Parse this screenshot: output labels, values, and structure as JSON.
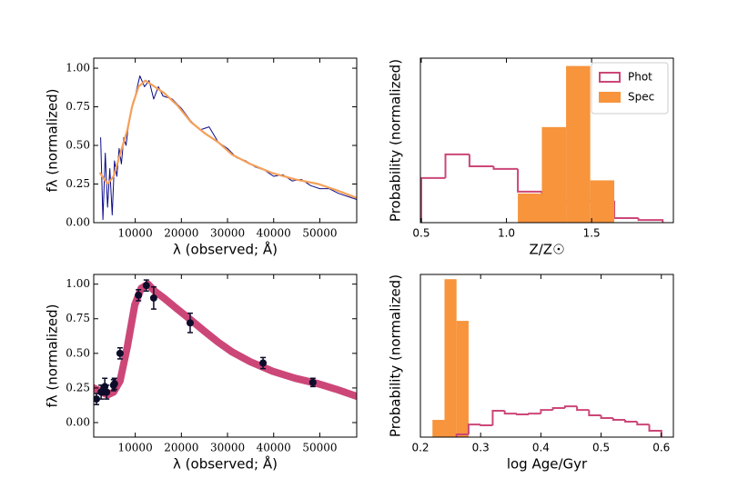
{
  "chart_data": [
    {
      "type": "line",
      "x_label": "λ (observed; Å)",
      "y_label": "fλ (normalized)",
      "xlim": [
        1000,
        58000
      ],
      "ylim": [
        0,
        1.065
      ],
      "xticks": [
        10000,
        20000,
        30000,
        40000,
        50000
      ],
      "yticks": [
        {
          "value": 0,
          "label": "0.00"
        },
        {
          "value": 0.25,
          "label": "0.25"
        },
        {
          "value": 0.5,
          "label": "0.50"
        },
        {
          "value": 0.75,
          "label": "0.75"
        },
        {
          "value": 1,
          "label": "1.00"
        }
      ],
      "series": [
        {
          "color": "#0b0b8a",
          "x": [
            2500,
            3000,
            3500,
            4000,
            4500,
            5000,
            5500,
            6000,
            6500,
            7000,
            7500,
            8000,
            8500,
            9000,
            9500,
            10000,
            11000,
            12000,
            13000,
            14000,
            15000,
            16000,
            18000,
            20000,
            22000,
            24000,
            26000,
            28000,
            30000,
            32000,
            34000,
            36000,
            38000,
            40000,
            42000,
            44000,
            46000,
            48000,
            50000,
            52000,
            54000,
            56000,
            58000
          ],
          "values": [
            0.55,
            0.02,
            0.45,
            0.1,
            0.35,
            0.05,
            0.4,
            0.3,
            0.48,
            0.38,
            0.55,
            0.5,
            0.62,
            0.7,
            0.78,
            0.82,
            0.95,
            0.88,
            0.92,
            0.8,
            0.88,
            0.82,
            0.8,
            0.74,
            0.66,
            0.6,
            0.62,
            0.52,
            0.48,
            0.42,
            0.4,
            0.36,
            0.34,
            0.3,
            0.31,
            0.27,
            0.28,
            0.24,
            0.22,
            0.22,
            0.19,
            0.17,
            0.15
          ]
        },
        {
          "color": "#f5a05a",
          "x": [
            2400,
            4000,
            5300,
            7300,
            8300,
            9300,
            10700,
            12200,
            14200,
            16200,
            19100,
            22100,
            25000,
            28000,
            31000,
            34900,
            39800,
            44700,
            49700,
            53600,
            58000
          ],
          "values": [
            0.32,
            0.25,
            0.3,
            0.5,
            0.6,
            0.75,
            0.88,
            0.92,
            0.88,
            0.84,
            0.76,
            0.65,
            0.58,
            0.52,
            0.44,
            0.38,
            0.32,
            0.28,
            0.25,
            0.21,
            0.16
          ]
        }
      ]
    },
    {
      "type": "histogram",
      "x_label": "Z/Z☉",
      "y_label": "Probability (normalized)",
      "xlim": [
        0.495,
        1.98
      ],
      "ylim": [
        0,
        1.05
      ],
      "xticks": [
        0.5,
        {
          "value": 1,
          "label": "1.0"
        },
        1.5
      ],
      "legend": "upper right",
      "series": [
        {
          "name": "Phot",
          "color": "#cc4778",
          "style": "step",
          "bins": [
            0.5,
            0.642,
            0.783,
            0.925,
            1.067,
            1.208,
            1.35,
            1.492,
            1.633,
            1.775,
            1.917
          ],
          "values": [
            0.285,
            0.436,
            0.36,
            0.343,
            0.198,
            0.145,
            0.134,
            0.14,
            0.029,
            0.017
          ]
        },
        {
          "name": "Spec",
          "color": "#f7943c",
          "style": "filled",
          "bins": [
            1.067,
            1.208,
            1.35,
            1.492,
            1.633
          ],
          "values": [
            0.186,
            0.61,
            1.0,
            0.27
          ]
        }
      ]
    },
    {
      "type": "line",
      "x_label": "λ (observed; Å)",
      "y_label": "fλ (normalized)",
      "xlim": [
        1000,
        58000
      ],
      "ylim": [
        -0.105,
        1.07
      ],
      "xticks": [
        10000,
        20000,
        30000,
        40000,
        50000
      ],
      "yticks": [
        {
          "value": 0,
          "label": "0.00"
        },
        {
          "value": 0.25,
          "label": "0.25"
        },
        {
          "value": 0.5,
          "label": "0.50"
        },
        {
          "value": 0.75,
          "label": "0.75"
        },
        {
          "value": 1,
          "label": "1.00"
        }
      ],
      "series": [
        {
          "color": "#cc4778",
          "x": [
            1000,
            4000,
            5300,
            6700,
            8300,
            9900,
            11300,
            12800,
            14200,
            16200,
            19100,
            22100,
            25000,
            28000,
            31000,
            34900,
            39800,
            44700,
            49700,
            53600,
            58000
          ],
          "values": [
            0.25,
            0.2,
            0.22,
            0.3,
            0.55,
            0.85,
            0.97,
            1.0,
            0.95,
            0.9,
            0.82,
            0.74,
            0.66,
            0.58,
            0.51,
            0.44,
            0.37,
            0.32,
            0.28,
            0.24,
            0.19
          ]
        }
      ],
      "points": {
        "color": "#0d0d2b",
        "x": [
          1600,
          2600,
          3400,
          3800,
          5300,
          5500,
          6700,
          10700,
          12400,
          14000,
          21900,
          37700,
          48500
        ],
        "values": [
          0.17,
          0.22,
          0.26,
          0.22,
          0.27,
          0.28,
          0.5,
          0.92,
          0.99,
          0.9,
          0.72,
          0.43,
          0.29
        ],
        "errors": [
          0.04,
          0.05,
          0.06,
          0.05,
          0.04,
          0.04,
          0.04,
          0.04,
          0.04,
          0.08,
          0.07,
          0.04,
          0.03
        ]
      }
    },
    {
      "type": "histogram",
      "x_label": "log Age/Gyr",
      "y_label": "Probability (normalized)",
      "xlim": [
        0.2,
        0.62
      ],
      "ylim": [
        0,
        1.03
      ],
      "xticks": [
        0.2,
        0.3,
        0.4,
        0.5,
        0.6
      ],
      "series": [
        {
          "color": "#f7943c",
          "style": "filled",
          "bins": [
            0.22,
            0.24,
            0.26,
            0.28
          ],
          "values": [
            0.109,
            1.0,
            0.736
          ]
        },
        {
          "color": "#cc4778",
          "style": "step",
          "bins": [
            0.26,
            0.28,
            0.3,
            0.32,
            0.34,
            0.36,
            0.38,
            0.4,
            0.42,
            0.44,
            0.46,
            0.48,
            0.5,
            0.52,
            0.54,
            0.56,
            0.58,
            0.6
          ],
          "values": [
            0.017,
            0.08,
            0.075,
            0.167,
            0.149,
            0.144,
            0.149,
            0.172,
            0.184,
            0.195,
            0.172,
            0.138,
            0.121,
            0.109,
            0.098,
            0.08,
            0.04
          ]
        }
      ]
    }
  ]
}
